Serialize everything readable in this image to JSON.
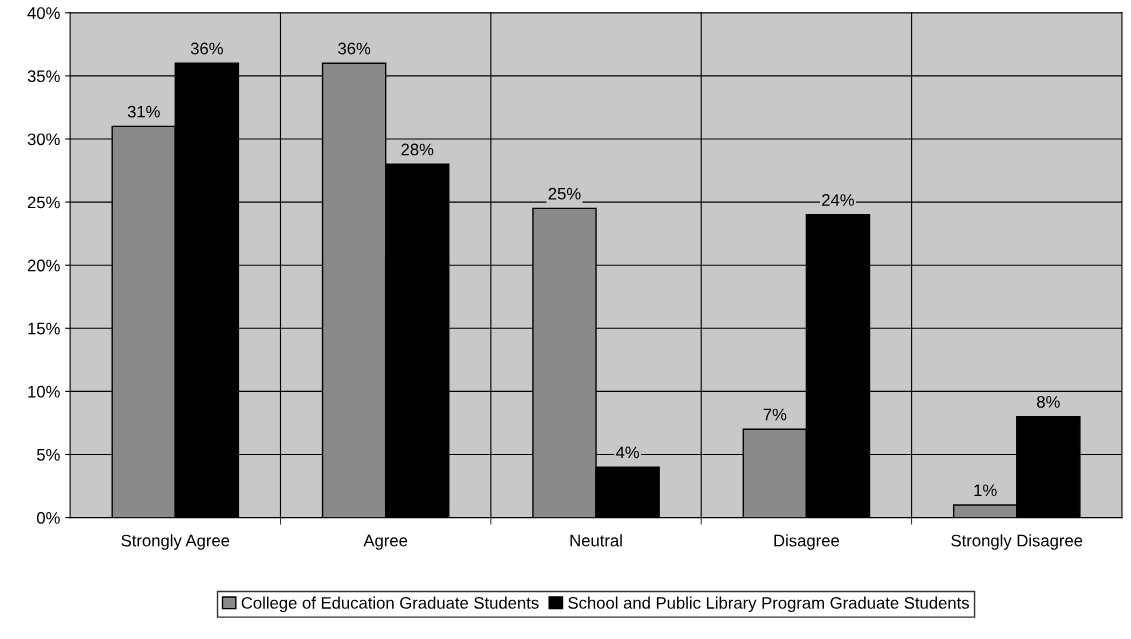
{
  "chart_data": {
    "type": "bar",
    "categories": [
      "Strongly Agree",
      "Agree",
      "Neutral",
      "Disagree",
      "Strongly Disagree"
    ],
    "series": [
      {
        "name": "College of Education Graduate Students",
        "color": "#8a8a8a",
        "values": [
          31,
          36,
          24.5,
          7,
          1
        ],
        "value_labels": [
          "31%",
          "36%",
          "25%",
          "7%",
          "1%"
        ]
      },
      {
        "name": "School and Public Library Program Graduate Students",
        "color": "#000000",
        "values": [
          36,
          28,
          4,
          24,
          8
        ],
        "value_labels": [
          "36%",
          "28%",
          "4%",
          "24%",
          "8%"
        ]
      }
    ],
    "ylim": [
      0,
      40
    ],
    "yticks": [
      {
        "value": 0,
        "label": "0%"
      },
      {
        "value": 5,
        "label": "5%"
      },
      {
        "value": 10,
        "label": "10%"
      },
      {
        "value": 15,
        "label": "15%"
      },
      {
        "value": 20,
        "label": "20%"
      },
      {
        "value": 25,
        "label": "25%"
      },
      {
        "value": 30,
        "label": "30%"
      },
      {
        "value": 35,
        "label": "35%"
      },
      {
        "value": 40,
        "label": "40%"
      }
    ],
    "grid": true,
    "legend": "bottom"
  }
}
